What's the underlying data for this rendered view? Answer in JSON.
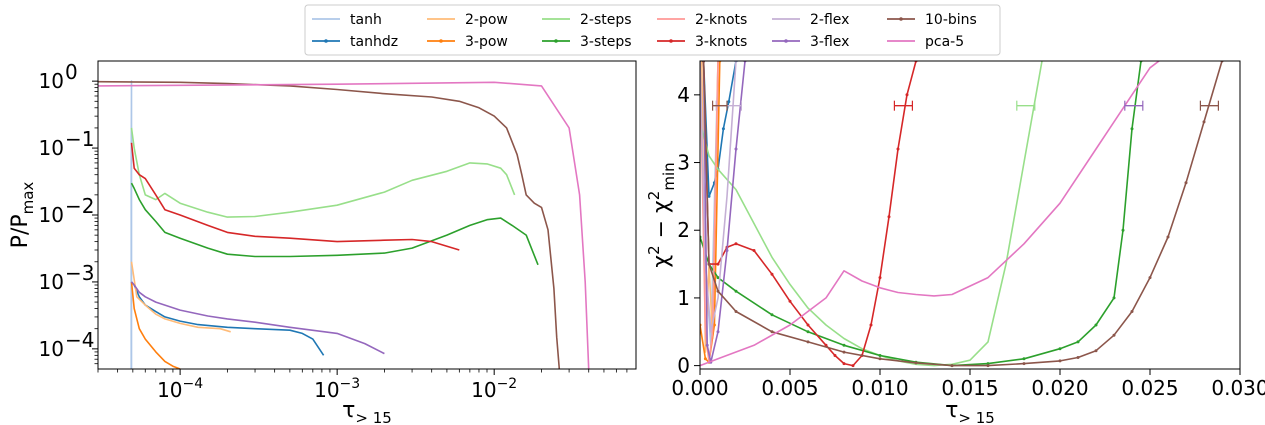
{
  "legend": {
    "placement": "top-center",
    "entries": [
      {
        "label": "tanh",
        "color": "#aec7e8",
        "markers": false
      },
      {
        "label": "tanhdz",
        "color": "#1f77b4",
        "markers": true
      },
      {
        "label": "2-pow",
        "color": "#ffbb78",
        "markers": false
      },
      {
        "label": "3-pow",
        "color": "#ff7f0e",
        "markers": true
      },
      {
        "label": "2-steps",
        "color": "#98df8a",
        "markers": false
      },
      {
        "label": "3-steps",
        "color": "#2ca02c",
        "markers": true
      },
      {
        "label": "2-knots",
        "color": "#ff9896",
        "markers": false
      },
      {
        "label": "3-knots",
        "color": "#d62728",
        "markers": true
      },
      {
        "label": "2-flex",
        "color": "#c5b0d5",
        "markers": false
      },
      {
        "label": "3-flex",
        "color": "#9467bd",
        "markers": true
      },
      {
        "label": "10-bins",
        "color": "#8c564b",
        "markers": true
      },
      {
        "label": "pca-5",
        "color": "#e377c2",
        "markers": false
      }
    ]
  },
  "chart_data": [
    {
      "type": "line",
      "xscale": "log",
      "yscale": "log",
      "xlim": [
        3e-05,
        0.08
      ],
      "ylim": [
        5e-05,
        2
      ],
      "xlabel_base": "τ",
      "xlabel_sub": "> 15",
      "ylabel_base": "P/P",
      "ylabel_sub": "max",
      "xticks": [
        {
          "v": 0.0001,
          "mant": "10",
          "exp": "−4"
        },
        {
          "v": 0.001,
          "mant": "10",
          "exp": "−3"
        },
        {
          "v": 0.01,
          "mant": "10",
          "exp": "−2"
        }
      ],
      "yticks": [
        {
          "v": 1,
          "mant": "10",
          "exp": "0"
        },
        {
          "v": 0.1,
          "mant": "10",
          "exp": "−1"
        },
        {
          "v": 0.01,
          "mant": "10",
          "exp": "−2"
        },
        {
          "v": 0.001,
          "mant": "10",
          "exp": "−3"
        },
        {
          "v": 0.0001,
          "mant": "10",
          "exp": "−4"
        }
      ],
      "series": [
        {
          "name": "tanh",
          "x": [
            4.88e-05,
            4.88e-05,
            4.9e-05,
            4.9e-05
          ],
          "y": [
            5e-05,
            0.05,
            1,
            5e-05
          ]
        },
        {
          "name": "tanhdz",
          "x": [
            4.9e-05,
            5.1e-05,
            5.5e-05,
            6e-05,
            7e-05,
            8e-05,
            0.0001,
            0.00013,
            0.0002,
            0.0003,
            0.0005,
            0.0006,
            0.0007,
            0.00082
          ],
          "y": [
            0.001,
            0.0009,
            0.0006,
            0.00045,
            0.00036,
            0.0003,
            0.00026,
            0.00023,
            0.00021,
            0.0002,
            0.00019,
            0.00017,
            0.00014,
            8e-05
          ]
        },
        {
          "name": "2-pow",
          "x": [
            4.9e-05,
            5.3e-05,
            6e-05,
            7e-05,
            8e-05,
            0.0001,
            0.00013,
            0.00018,
            0.00021
          ],
          "y": [
            0.002,
            0.0006,
            0.00045,
            0.00033,
            0.00028,
            0.00024,
            0.00021,
            0.0002,
            0.00018
          ]
        },
        {
          "name": "3-pow",
          "x": [
            4.9e-05,
            5.1e-05,
            5.5e-05,
            6e-05,
            7e-05,
            8e-05,
            9e-05,
            0.0001
          ],
          "y": [
            0.001,
            0.0004,
            0.0002,
            0.00014,
            9e-05,
            6.5e-05,
            5.5e-05,
            5e-05
          ]
        },
        {
          "name": "2-steps",
          "x": [
            4.9e-05,
            5.1e-05,
            5.5e-05,
            6e-05,
            7e-05,
            8e-05,
            0.0001,
            0.00015,
            0.0002,
            0.0003,
            0.0005,
            0.001,
            0.002,
            0.003,
            0.005,
            0.007,
            0.009,
            0.011,
            0.012,
            0.0135
          ],
          "y": [
            0.2,
            0.1,
            0.04,
            0.02,
            0.017,
            0.021,
            0.015,
            0.011,
            0.0093,
            0.0095,
            0.011,
            0.014,
            0.022,
            0.033,
            0.045,
            0.06,
            0.058,
            0.05,
            0.04,
            0.02
          ]
        },
        {
          "name": "3-steps",
          "x": [
            4.9e-05,
            5.1e-05,
            5.5e-05,
            6e-05,
            7e-05,
            8e-05,
            0.0001,
            0.00015,
            0.0002,
            0.0003,
            0.0005,
            0.001,
            0.002,
            0.003,
            0.005,
            0.007,
            0.009,
            0.011,
            0.013,
            0.016,
            0.019
          ],
          "y": [
            0.03,
            0.025,
            0.017,
            0.012,
            0.008,
            0.0055,
            0.0045,
            0.0032,
            0.0026,
            0.0024,
            0.0024,
            0.0025,
            0.0027,
            0.0032,
            0.005,
            0.007,
            0.0085,
            0.009,
            0.007,
            0.005,
            0.0018
          ]
        },
        {
          "name": "3-knots",
          "x": [
            4.9e-05,
            5.1e-05,
            5.5e-05,
            6e-05,
            7e-05,
            8e-05,
            0.0001,
            0.00015,
            0.0002,
            0.0003,
            0.0005,
            0.001,
            0.002,
            0.003,
            0.004,
            0.006
          ],
          "y": [
            0.12,
            0.05,
            0.04,
            0.035,
            0.02,
            0.012,
            0.01,
            0.007,
            0.0055,
            0.0048,
            0.0045,
            0.004,
            0.0042,
            0.0043,
            0.004,
            0.003
          ]
        },
        {
          "name": "3-flex",
          "x": [
            4.9e-05,
            5.1e-05,
            5.5e-05,
            6e-05,
            7e-05,
            8e-05,
            0.0001,
            0.00015,
            0.0002,
            0.0003,
            0.0005,
            0.001,
            0.0015,
            0.002
          ],
          "y": [
            0.001,
            0.0009,
            0.0007,
            0.0006,
            0.0005,
            0.00045,
            0.00038,
            0.00031,
            0.00028,
            0.00025,
            0.00021,
            0.00017,
            0.00012,
            8.5e-05
          ]
        },
        {
          "name": "10-bins",
          "x": [
            3e-05,
            0.0001,
            0.0002,
            0.0005,
            0.001,
            0.002,
            0.004,
            0.006,
            0.008,
            0.01,
            0.012,
            0.014,
            0.015,
            0.016,
            0.018,
            0.02,
            0.022,
            0.024,
            0.025,
            0.026
          ],
          "y": [
            0.98,
            0.96,
            0.92,
            0.85,
            0.75,
            0.65,
            0.58,
            0.5,
            0.4,
            0.3,
            0.2,
            0.08,
            0.04,
            0.02,
            0.015,
            0.013,
            0.006,
            0.0008,
            0.00015,
            5e-05
          ]
        },
        {
          "name": "pca-5",
          "x": [
            3e-05,
            0.001,
            0.01,
            0.02,
            0.03,
            0.035,
            0.038,
            0.04
          ],
          "y": [
            0.85,
            0.9,
            0.96,
            0.85,
            0.2,
            0.02,
            0.001,
            5e-05
          ]
        }
      ]
    },
    {
      "type": "line",
      "xlim": [
        0,
        0.03
      ],
      "ylim": [
        -0.05,
        4.5
      ],
      "xlabel_base": "τ",
      "xlabel_sub": "> 15",
      "ylabel_parts": [
        "χ",
        "2",
        " − χ",
        "2",
        "min"
      ],
      "xticks": [
        {
          "v": 0,
          "label": "0.000"
        },
        {
          "v": 0.005,
          "label": "0.005"
        },
        {
          "v": 0.01,
          "label": "0.010"
        },
        {
          "v": 0.015,
          "label": "0.015"
        },
        {
          "v": 0.02,
          "label": "0.020"
        },
        {
          "v": 0.025,
          "label": "0.025"
        },
        {
          "v": 0.03,
          "label": "0.030"
        }
      ],
      "yticks": [
        {
          "v": 0,
          "label": "0"
        },
        {
          "v": 1,
          "label": "1"
        },
        {
          "v": 2,
          "label": "2"
        },
        {
          "v": 3,
          "label": "3"
        },
        {
          "v": 4,
          "label": "4"
        }
      ],
      "series": [
        {
          "name": "tanh",
          "x": [
            0,
            0.0003,
            0.0006,
            0.001
          ],
          "y": [
            4.5,
            1.5,
            0.3,
            4.5
          ]
        },
        {
          "name": "tanhdz",
          "x": [
            0.0002,
            0.0005,
            0.0008,
            0.001,
            0.0013,
            0.0016,
            0.002
          ],
          "y": [
            4.5,
            2.5,
            2.7,
            2.9,
            3.5,
            3.9,
            4.5
          ]
        },
        {
          "name": "2-pow",
          "x": [
            0.0001,
            0.0003,
            0.0005,
            0.0007,
            0.001
          ],
          "y": [
            4.5,
            0.2,
            1.5,
            0.4,
            4.5
          ]
        },
        {
          "name": "3-pow",
          "x": [
            0,
            0.0003,
            0.0005,
            0.0008,
            0.0011
          ],
          "y": [
            0.6,
            0.1,
            0.05,
            0.6,
            4.5
          ]
        },
        {
          "name": "2-steps",
          "x": [
            0,
            0.0005,
            0.001,
            0.002,
            0.003,
            0.004,
            0.005,
            0.006,
            0.007,
            0.008,
            0.009,
            0.01,
            0.011,
            0.012,
            0.013,
            0.014,
            0.015,
            0.016,
            0.017,
            0.018,
            0.019
          ],
          "y": [
            3.6,
            3.1,
            2.9,
            2.6,
            2.1,
            1.6,
            1.2,
            0.85,
            0.6,
            0.4,
            0.25,
            0.15,
            0.07,
            0.02,
            0.0,
            0.02,
            0.08,
            0.35,
            1.5,
            3.0,
            4.5
          ]
        },
        {
          "name": "3-steps",
          "x": [
            0,
            0.0005,
            0.001,
            0.002,
            0.004,
            0.006,
            0.008,
            0.01,
            0.012,
            0.014,
            0.016,
            0.018,
            0.02,
            0.021,
            0.022,
            0.023,
            0.0235,
            0.024,
            0.0245
          ],
          "y": [
            1.9,
            1.5,
            1.3,
            1.1,
            0.75,
            0.5,
            0.3,
            0.15,
            0.05,
            0.0,
            0.03,
            0.1,
            0.25,
            0.35,
            0.6,
            1.0,
            2.0,
            3.5,
            4.5
          ]
        },
        {
          "name": "2-knots",
          "x": [
            0,
            0.0003,
            0.0005,
            0.0007,
            0.001
          ],
          "y": [
            4.5,
            0.5,
            0.05,
            0.5,
            4.5
          ]
        },
        {
          "name": "3-knots",
          "x": [
            0.0002,
            0.0005,
            0.001,
            0.0015,
            0.002,
            0.003,
            0.004,
            0.005,
            0.006,
            0.007,
            0.0075,
            0.008,
            0.0085,
            0.009,
            0.0095,
            0.01,
            0.0105,
            0.011,
            0.0115,
            0.012
          ],
          "y": [
            4.5,
            1.5,
            1.5,
            1.75,
            1.8,
            1.7,
            1.35,
            0.95,
            0.6,
            0.3,
            0.15,
            0.03,
            0.0,
            0.15,
            0.6,
            1.3,
            2.2,
            3.2,
            4.0,
            4.5
          ]
        },
        {
          "name": "2-flex",
          "x": [
            0,
            0.0003,
            0.0006,
            0.001,
            0.0015,
            0.002
          ],
          "y": [
            4.5,
            1.5,
            0.5,
            1.0,
            2.5,
            4.5
          ]
        },
        {
          "name": "3-flex",
          "x": [
            0.0002,
            0.0004,
            0.0006,
            0.001,
            0.0015,
            0.002,
            0.0025
          ],
          "y": [
            4.5,
            0.3,
            0.05,
            0.5,
            1.7,
            3.2,
            4.5
          ]
        },
        {
          "name": "10-bins",
          "x": [
            0.0002,
            0.0005,
            0.001,
            0.002,
            0.004,
            0.006,
            0.008,
            0.01,
            0.012,
            0.014,
            0.016,
            0.018,
            0.02,
            0.021,
            0.022,
            0.023,
            0.024,
            0.025,
            0.026,
            0.027,
            0.028,
            0.029
          ],
          "y": [
            4.5,
            1.5,
            1.1,
            0.8,
            0.5,
            0.35,
            0.2,
            0.1,
            0.04,
            0.0,
            0.0,
            0.03,
            0.07,
            0.12,
            0.22,
            0.45,
            0.8,
            1.3,
            1.9,
            2.7,
            3.6,
            4.5
          ]
        },
        {
          "name": "pca-5",
          "x": [
            0,
            0.001,
            0.003,
            0.005,
            0.007,
            0.008,
            0.009,
            0.01,
            0.011,
            0.012,
            0.013,
            0.014,
            0.016,
            0.018,
            0.02,
            0.022,
            0.024,
            0.025,
            0.0255
          ],
          "y": [
            0.0,
            0.1,
            0.3,
            0.6,
            1.0,
            1.4,
            1.25,
            1.15,
            1.08,
            1.05,
            1.03,
            1.05,
            1.3,
            1.8,
            2.4,
            3.2,
            4.0,
            4.4,
            4.5
          ]
        }
      ],
      "error_bars": [
        {
          "color": "#c5b0d5",
          "x": 0.0016,
          "xerr": 0.0007,
          "y": 3.84
        },
        {
          "color": "#8c564b",
          "x": 0.0011,
          "xerr": 0.0004,
          "y": 3.84
        },
        {
          "color": "#d62728",
          "x": 0.0113,
          "xerr": 0.0005,
          "y": 3.84
        },
        {
          "color": "#98df8a",
          "x": 0.0181,
          "xerr": 0.0005,
          "y": 3.84
        },
        {
          "color": "#9467bd",
          "x": 0.0241,
          "xerr": 0.0005,
          "y": 3.84
        },
        {
          "color": "#8c564b",
          "x": 0.0283,
          "xerr": 0.0005,
          "y": 3.84
        }
      ]
    }
  ]
}
